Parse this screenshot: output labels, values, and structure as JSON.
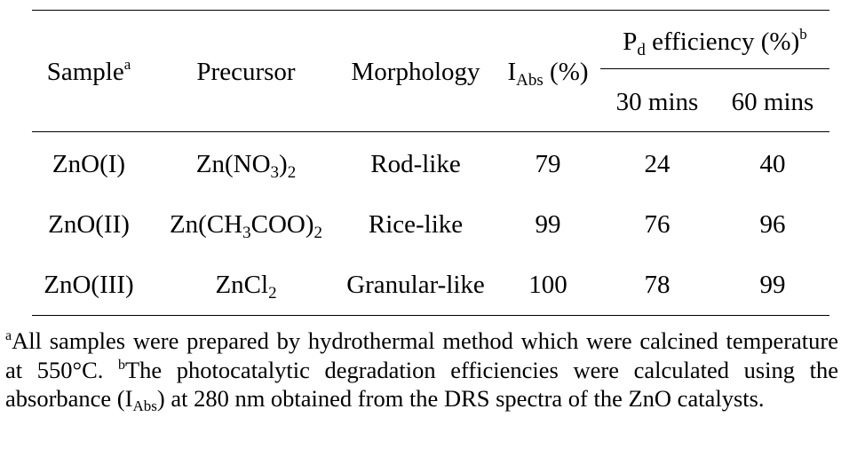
{
  "table": {
    "headers": {
      "sample": "Sample",
      "sample_mark": "a",
      "precursor": "Precursor",
      "morphology": "Morphology",
      "iabs_main": "I",
      "iabs_sub": "Abs",
      "iabs_unit": " (%)",
      "pd_main": "P",
      "pd_sub": "d",
      "pd_rest": " efficiency (%)",
      "pd_mark": "b",
      "t30": "30 mins",
      "t60": "60 mins"
    },
    "rows": [
      {
        "sample": "ZnO(I)",
        "precursor": {
          "p1": "Zn(NO",
          "s1": "3",
          "p2": ")",
          "s2": "2"
        },
        "morphology": "Rod-like",
        "iabs": "79",
        "pd30": "24",
        "pd60": "40"
      },
      {
        "sample": "ZnO(II)",
        "precursor": {
          "p1": "Zn(CH",
          "s1": "3",
          "p2": "COO)",
          "s2": "2"
        },
        "morphology": "Rice-like",
        "iabs": "99",
        "pd30": "76",
        "pd60": "96"
      },
      {
        "sample": "ZnO(III)",
        "precursor": {
          "p1": "ZnCl",
          "s1": "2",
          "p2": "",
          "s2": ""
        },
        "morphology": "Granular-like",
        "iabs": "100",
        "pd30": "78",
        "pd60": "99"
      }
    ]
  },
  "footnotes": {
    "a_mark": "a",
    "a_text": "All samples were prepared by hydrothermal method which were calcined temperature at 550°C. ",
    "b_mark": "b",
    "b_text1": "The photocatalytic degradation efficiencies were calculated using the absorbance (I",
    "b_sub": "Abs",
    "b_text2": ") at 280 nm obtained from the DRS spectra of the ZnO catalysts."
  }
}
